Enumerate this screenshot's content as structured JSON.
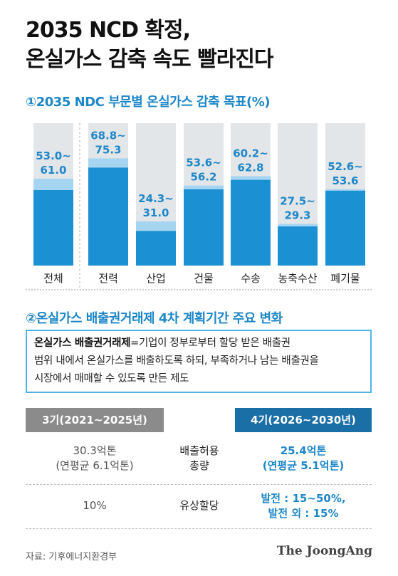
{
  "title": {
    "line1": "2035 NCD 확정,",
    "line2": "온실가스 감축 속도 빨라진다"
  },
  "section1_title": "①2035 NDC 부문별 온실가스 감축 목표(%)",
  "chart_data": {
    "type": "bar",
    "title": "①2035 NDC 부문별 온실가스 감축 목표(%)",
    "categories": [
      "전체",
      "전력",
      "산업",
      "건물",
      "수송",
      "농축수산",
      "폐기물"
    ],
    "series": [
      {
        "values": [
          53.0,
          68.8,
          24.3,
          53.6,
          60.2,
          27.5,
          52.6
        ]
      },
      {
        "values": [
          61.0,
          75.3,
          31.0,
          56.2,
          62.8,
          29.3,
          53.6
        ]
      }
    ],
    "labels_top": [
      "53.0~",
      "68.8~",
      "24.3~",
      "53.6~",
      "60.2~",
      "27.5~",
      "52.6~"
    ],
    "labels_bottom": [
      "61.0",
      "75.3",
      "31.0",
      "56.2",
      "62.8",
      "29.3",
      "53.6"
    ],
    "ylim": [
      0,
      100
    ],
    "colors": {
      "background_bar": "#e3e6e8",
      "range": "#a6d5f2",
      "base": "#1b90d2",
      "label": "#1d87c8"
    }
  },
  "section2_title": "②온실가스 배출권거래제 4차 계획기간 주요 변화",
  "definition": {
    "term": "온실가스 배출권거래제",
    "line1_rest": "=기업이 정부로부터 할당 받은 배출권",
    "line2": "범위 내에서 온실가스를 배출하도록 하되, 부족하거나 남는 배출권을",
    "line3": "시장에서 매매할 수 있도록 만든 제도"
  },
  "table": {
    "header_left": "3기(2021~2025년)",
    "header_right": "4기(2026~2030년)",
    "rows": [
      {
        "left1": "30.3억톤",
        "left2": "(연평균 6.1억톤)",
        "mid1": "배출허용",
        "mid2": "총량",
        "right1": "25.4억톤",
        "right2": "(연평균 5.1억톤)"
      },
      {
        "left1": "10%",
        "mid1": "유상할당",
        "right1": "발전 : 15~50%,",
        "right2": "발전 외 : 15%"
      }
    ]
  },
  "source": "자료: 기후에너지환경부",
  "logo": "The JoongAng"
}
